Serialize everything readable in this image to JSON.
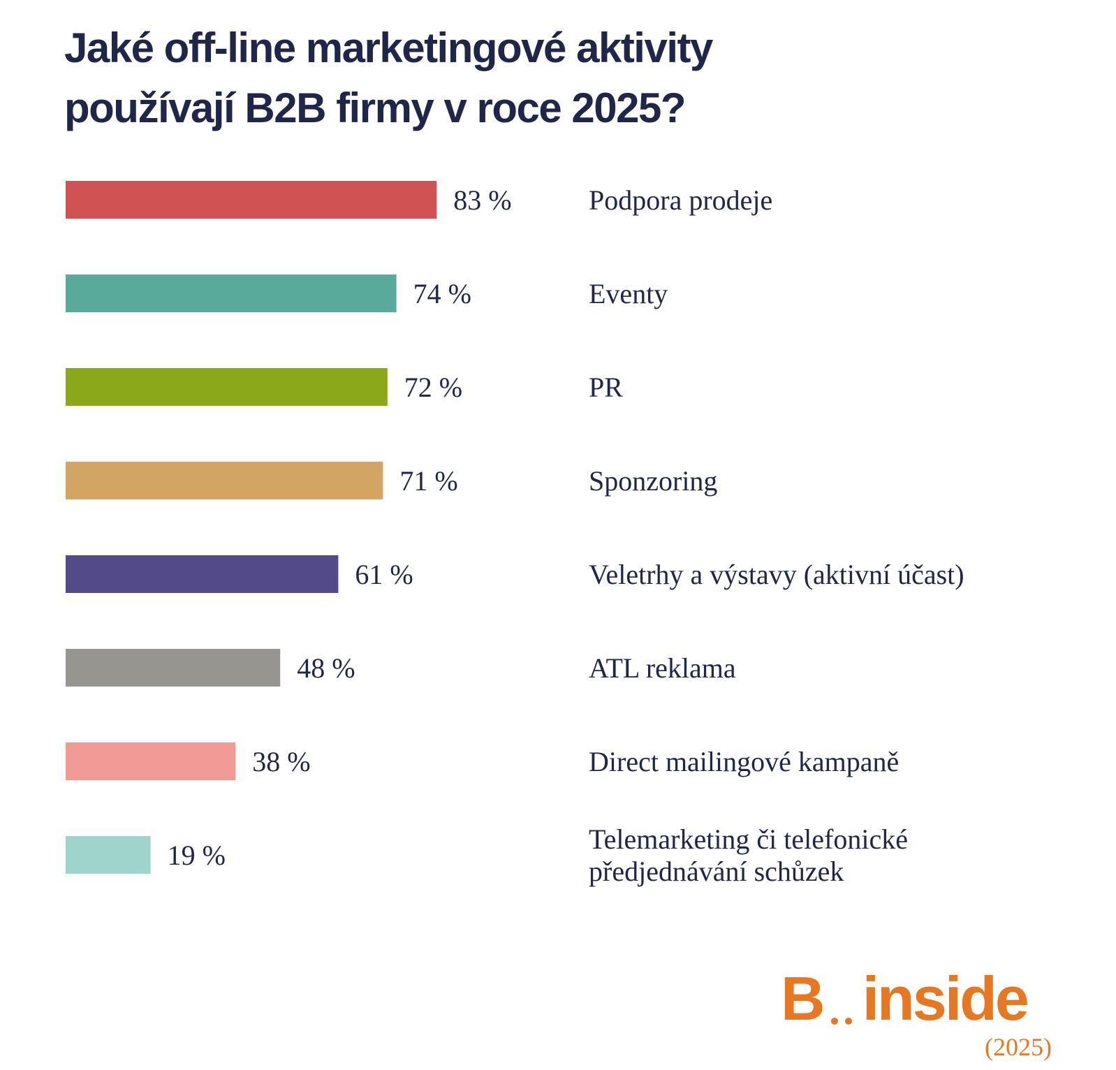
{
  "title_lines": [
    "Jaké off-line marketingové aktivity",
    "používají B2B firmy v roce 2025?"
  ],
  "chart_data": {
    "type": "bar",
    "orientation": "horizontal",
    "value_suffix": " %",
    "title": "Jaké off-line marketingové aktivity používají B2B firmy v roce 2025?",
    "categories": [
      [
        "Podpora prodeje"
      ],
      [
        "Eventy"
      ],
      [
        "PR"
      ],
      [
        "Sponzoring"
      ],
      [
        "Veletrhy a výstavy (aktivní účast)"
      ],
      [
        "ATL reklama"
      ],
      [
        "Direct mailingové kampaně"
      ],
      [
        "Telemarketing či telefonické",
        "předjednávání schůzek"
      ]
    ],
    "values": [
      83,
      74,
      72,
      71,
      61,
      48,
      38,
      19
    ],
    "colors": [
      "#d05252",
      "#5aaa9c",
      "#8aa81a",
      "#d2a562",
      "#524a89",
      "#969590",
      "#f19a96",
      "#9ed4cb"
    ],
    "xlim": [
      0,
      100
    ],
    "grid": false,
    "legend": "none"
  },
  "logo": {
    "brand": "B",
    "name": "inside",
    "year": "(2025)"
  }
}
